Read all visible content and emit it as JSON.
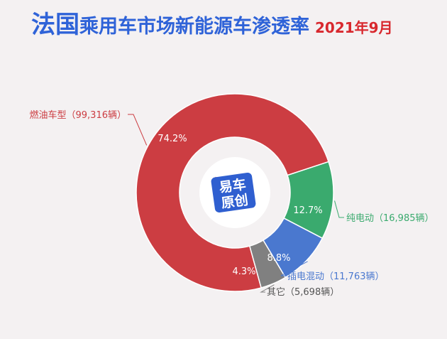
{
  "title": {
    "country": "法国",
    "rest": "乘用车市场新能源车渗透率",
    "date": "2021年9月"
  },
  "logo": {
    "line1": "易车",
    "line2": "原创"
  },
  "colors": {
    "title_blue": "#2f63d8",
    "date_red": "#d8282e",
    "logo_blue": "#2f5fd0",
    "logo_red": "#e23a3a"
  },
  "chart_data": {
    "type": "pie",
    "title": "法国乘用车市场新能源车渗透率",
    "subtitle": "2021年9月",
    "slices": [
      {
        "name": "燃油车型",
        "value": 99316,
        "percent_label": "74.2%",
        "label": "燃油车型（99,316辆）",
        "color": "#cc3d42"
      },
      {
        "name": "纯电动",
        "value": 16985,
        "percent_label": "12.7%",
        "label": "纯电动（16,985辆）",
        "color": "#3aaa6e"
      },
      {
        "name": "插电混动",
        "value": 11763,
        "percent_label": "8.8%",
        "label": "插电混动（11,763辆）",
        "color": "#4a78cf"
      },
      {
        "name": "其它",
        "value": 5698,
        "percent_label": "4.3%",
        "label": "其它（5,698辆）",
        "color": "#808080"
      }
    ]
  }
}
